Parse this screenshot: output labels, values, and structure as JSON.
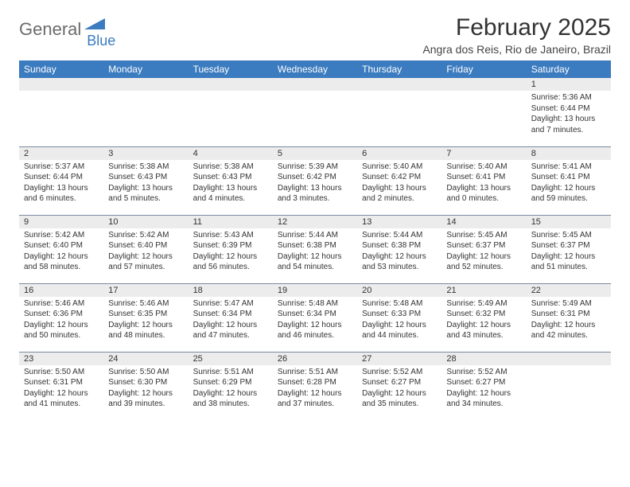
{
  "logo": {
    "main": "General",
    "sub": "Blue"
  },
  "title": "February 2025",
  "location": "Angra dos Reis, Rio de Janeiro, Brazil",
  "brand_color": "#3b7bbf",
  "header_bg": "#3b7bbf",
  "header_text_color": "#ffffff",
  "daynum_bg": "#ececec",
  "border_color": "#7a8aa0",
  "font_family": "Arial",
  "weekdays": [
    "Sunday",
    "Monday",
    "Tuesday",
    "Wednesday",
    "Thursday",
    "Friday",
    "Saturday"
  ],
  "weeks": [
    [
      null,
      null,
      null,
      null,
      null,
      null,
      {
        "n": "1",
        "sr": "Sunrise: 5:36 AM",
        "ss": "Sunset: 6:44 PM",
        "d1": "Daylight: 13 hours",
        "d2": "and 7 minutes."
      }
    ],
    [
      {
        "n": "2",
        "sr": "Sunrise: 5:37 AM",
        "ss": "Sunset: 6:44 PM",
        "d1": "Daylight: 13 hours",
        "d2": "and 6 minutes."
      },
      {
        "n": "3",
        "sr": "Sunrise: 5:38 AM",
        "ss": "Sunset: 6:43 PM",
        "d1": "Daylight: 13 hours",
        "d2": "and 5 minutes."
      },
      {
        "n": "4",
        "sr": "Sunrise: 5:38 AM",
        "ss": "Sunset: 6:43 PM",
        "d1": "Daylight: 13 hours",
        "d2": "and 4 minutes."
      },
      {
        "n": "5",
        "sr": "Sunrise: 5:39 AM",
        "ss": "Sunset: 6:42 PM",
        "d1": "Daylight: 13 hours",
        "d2": "and 3 minutes."
      },
      {
        "n": "6",
        "sr": "Sunrise: 5:40 AM",
        "ss": "Sunset: 6:42 PM",
        "d1": "Daylight: 13 hours",
        "d2": "and 2 minutes."
      },
      {
        "n": "7",
        "sr": "Sunrise: 5:40 AM",
        "ss": "Sunset: 6:41 PM",
        "d1": "Daylight: 13 hours",
        "d2": "and 0 minutes."
      },
      {
        "n": "8",
        "sr": "Sunrise: 5:41 AM",
        "ss": "Sunset: 6:41 PM",
        "d1": "Daylight: 12 hours",
        "d2": "and 59 minutes."
      }
    ],
    [
      {
        "n": "9",
        "sr": "Sunrise: 5:42 AM",
        "ss": "Sunset: 6:40 PM",
        "d1": "Daylight: 12 hours",
        "d2": "and 58 minutes."
      },
      {
        "n": "10",
        "sr": "Sunrise: 5:42 AM",
        "ss": "Sunset: 6:40 PM",
        "d1": "Daylight: 12 hours",
        "d2": "and 57 minutes."
      },
      {
        "n": "11",
        "sr": "Sunrise: 5:43 AM",
        "ss": "Sunset: 6:39 PM",
        "d1": "Daylight: 12 hours",
        "d2": "and 56 minutes."
      },
      {
        "n": "12",
        "sr": "Sunrise: 5:44 AM",
        "ss": "Sunset: 6:38 PM",
        "d1": "Daylight: 12 hours",
        "d2": "and 54 minutes."
      },
      {
        "n": "13",
        "sr": "Sunrise: 5:44 AM",
        "ss": "Sunset: 6:38 PM",
        "d1": "Daylight: 12 hours",
        "d2": "and 53 minutes."
      },
      {
        "n": "14",
        "sr": "Sunrise: 5:45 AM",
        "ss": "Sunset: 6:37 PM",
        "d1": "Daylight: 12 hours",
        "d2": "and 52 minutes."
      },
      {
        "n": "15",
        "sr": "Sunrise: 5:45 AM",
        "ss": "Sunset: 6:37 PM",
        "d1": "Daylight: 12 hours",
        "d2": "and 51 minutes."
      }
    ],
    [
      {
        "n": "16",
        "sr": "Sunrise: 5:46 AM",
        "ss": "Sunset: 6:36 PM",
        "d1": "Daylight: 12 hours",
        "d2": "and 50 minutes."
      },
      {
        "n": "17",
        "sr": "Sunrise: 5:46 AM",
        "ss": "Sunset: 6:35 PM",
        "d1": "Daylight: 12 hours",
        "d2": "and 48 minutes."
      },
      {
        "n": "18",
        "sr": "Sunrise: 5:47 AM",
        "ss": "Sunset: 6:34 PM",
        "d1": "Daylight: 12 hours",
        "d2": "and 47 minutes."
      },
      {
        "n": "19",
        "sr": "Sunrise: 5:48 AM",
        "ss": "Sunset: 6:34 PM",
        "d1": "Daylight: 12 hours",
        "d2": "and 46 minutes."
      },
      {
        "n": "20",
        "sr": "Sunrise: 5:48 AM",
        "ss": "Sunset: 6:33 PM",
        "d1": "Daylight: 12 hours",
        "d2": "and 44 minutes."
      },
      {
        "n": "21",
        "sr": "Sunrise: 5:49 AM",
        "ss": "Sunset: 6:32 PM",
        "d1": "Daylight: 12 hours",
        "d2": "and 43 minutes."
      },
      {
        "n": "22",
        "sr": "Sunrise: 5:49 AM",
        "ss": "Sunset: 6:31 PM",
        "d1": "Daylight: 12 hours",
        "d2": "and 42 minutes."
      }
    ],
    [
      {
        "n": "23",
        "sr": "Sunrise: 5:50 AM",
        "ss": "Sunset: 6:31 PM",
        "d1": "Daylight: 12 hours",
        "d2": "and 41 minutes."
      },
      {
        "n": "24",
        "sr": "Sunrise: 5:50 AM",
        "ss": "Sunset: 6:30 PM",
        "d1": "Daylight: 12 hours",
        "d2": "and 39 minutes."
      },
      {
        "n": "25",
        "sr": "Sunrise: 5:51 AM",
        "ss": "Sunset: 6:29 PM",
        "d1": "Daylight: 12 hours",
        "d2": "and 38 minutes."
      },
      {
        "n": "26",
        "sr": "Sunrise: 5:51 AM",
        "ss": "Sunset: 6:28 PM",
        "d1": "Daylight: 12 hours",
        "d2": "and 37 minutes."
      },
      {
        "n": "27",
        "sr": "Sunrise: 5:52 AM",
        "ss": "Sunset: 6:27 PM",
        "d1": "Daylight: 12 hours",
        "d2": "and 35 minutes."
      },
      {
        "n": "28",
        "sr": "Sunrise: 5:52 AM",
        "ss": "Sunset: 6:27 PM",
        "d1": "Daylight: 12 hours",
        "d2": "and 34 minutes."
      },
      null
    ]
  ]
}
